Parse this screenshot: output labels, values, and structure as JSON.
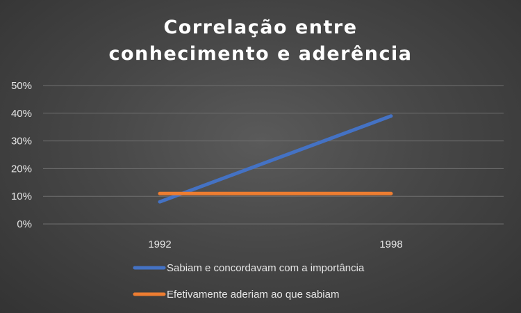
{
  "chart_data": {
    "type": "line",
    "title_lines": [
      "Correlação entre",
      "conhecimento e aderência"
    ],
    "x": [
      "1992",
      "1998"
    ],
    "y_ticks": [
      "0%",
      "10%",
      "20%",
      "30%",
      "40%",
      "50%"
    ],
    "ylim": [
      0,
      50
    ],
    "grid": true,
    "legend_position": "bottom",
    "series": [
      {
        "name": "Sabiam e concordavam com a importância",
        "values": [
          8,
          39
        ],
        "color": "#4472C4"
      },
      {
        "name": "Efetivamente aderiam ao que sabiam",
        "values": [
          11,
          11
        ],
        "color": "#ED7D31"
      }
    ]
  }
}
